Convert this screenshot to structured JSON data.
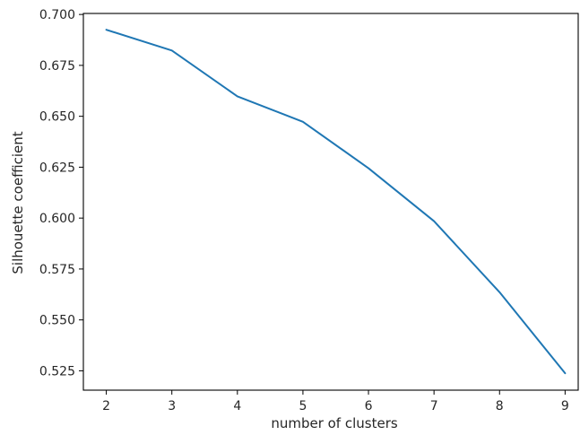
{
  "chart_data": {
    "type": "line",
    "title": "",
    "xlabel": "number of clusters",
    "ylabel": "Silhouette coefficient",
    "x": [
      2,
      3,
      4,
      5,
      6,
      7,
      8,
      9
    ],
    "series": [
      {
        "values": [
          0.6925,
          0.6823,
          0.6598,
          0.6473,
          0.6245,
          0.5985,
          0.5636,
          0.5238
        ],
        "color": "#1f77b4"
      }
    ],
    "xlim": [
      1.65,
      9.2
    ],
    "ylim": [
      0.5155,
      0.7005
    ],
    "xticks": [
      2,
      3,
      4,
      5,
      6,
      7,
      8,
      9
    ],
    "xtick_labels": [
      "2",
      "3",
      "4",
      "5",
      "6",
      "7",
      "8",
      "9"
    ],
    "yticks": [
      0.525,
      0.55,
      0.575,
      0.6,
      0.625,
      0.65,
      0.675,
      0.7
    ],
    "ytick_labels": [
      "0.525",
      "0.550",
      "0.575",
      "0.600",
      "0.625",
      "0.650",
      "0.675",
      "0.700"
    ],
    "grid": false,
    "legend": "none"
  }
}
